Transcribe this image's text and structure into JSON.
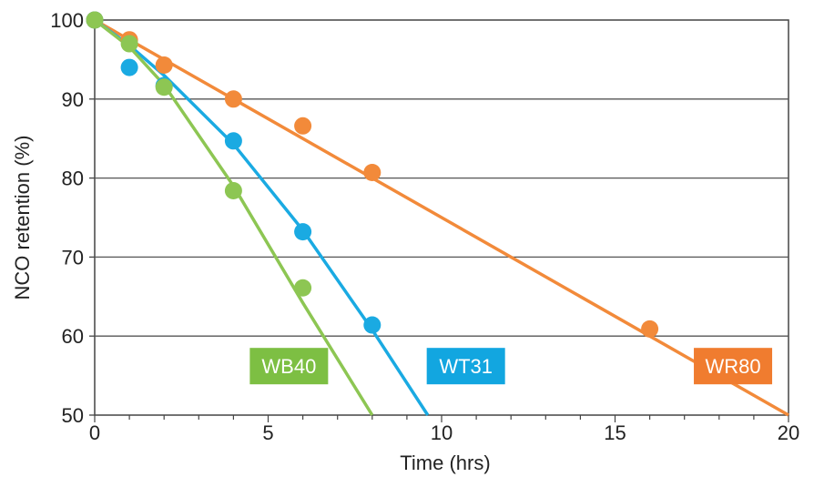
{
  "chart_data": {
    "type": "scatter",
    "title": "",
    "xlabel": "Time (hrs)",
    "ylabel": "NCO retention (%)",
    "xlim": [
      0,
      20
    ],
    "ylim": [
      50,
      100
    ],
    "xticks": [
      0,
      5,
      10,
      15,
      20
    ],
    "yticks": [
      50,
      60,
      70,
      80,
      90,
      100
    ],
    "xtick_labels": [
      "0",
      "5",
      "10",
      "15",
      "20"
    ],
    "ytick_labels": [
      "50",
      "60",
      "70",
      "80",
      "90",
      "100"
    ],
    "grid": "horizontal",
    "legend": "inline labels",
    "series": [
      {
        "name": "WR80",
        "color": "#f28a3a",
        "label_bg": "#f07c2f",
        "points": [
          {
            "x": 0,
            "y": 100
          },
          {
            "x": 1,
            "y": 97.5
          },
          {
            "x": 2,
            "y": 94.3
          },
          {
            "x": 4,
            "y": 90
          },
          {
            "x": 6,
            "y": 86.6
          },
          {
            "x": 8,
            "y": 80.7
          },
          {
            "x": 16,
            "y": 60.9
          }
        ],
        "fit_line": [
          [
            0,
            100
          ],
          [
            20,
            50
          ]
        ]
      },
      {
        "name": "WT31",
        "color": "#1aaae2",
        "label_bg": "#12a6e0",
        "points": [
          {
            "x": 0,
            "y": 100
          },
          {
            "x": 1,
            "y": 94
          },
          {
            "x": 2,
            "y": 91.7
          },
          {
            "x": 4,
            "y": 84.7
          },
          {
            "x": 6,
            "y": 73.2
          },
          {
            "x": 8,
            "y": 61.4
          }
        ],
        "fit_line": [
          [
            0,
            100
          ],
          [
            1,
            96.8
          ],
          [
            2,
            93
          ],
          [
            4,
            84.3
          ],
          [
            6,
            73.4
          ],
          [
            8,
            60.8
          ],
          [
            9.6,
            50
          ]
        ]
      },
      {
        "name": "WB40",
        "color": "#8dc653",
        "label_bg": "#7dbf43",
        "points": [
          {
            "x": 0,
            "y": 100
          },
          {
            "x": 1,
            "y": 97
          },
          {
            "x": 2,
            "y": 91.5
          },
          {
            "x": 4,
            "y": 78.4
          },
          {
            "x": 6,
            "y": 66.1
          }
        ],
        "fit_line": [
          [
            0,
            100
          ],
          [
            1,
            96.6
          ],
          [
            2,
            91.8
          ],
          [
            4,
            79
          ],
          [
            6,
            64.2
          ],
          [
            8,
            50
          ]
        ]
      }
    ]
  }
}
